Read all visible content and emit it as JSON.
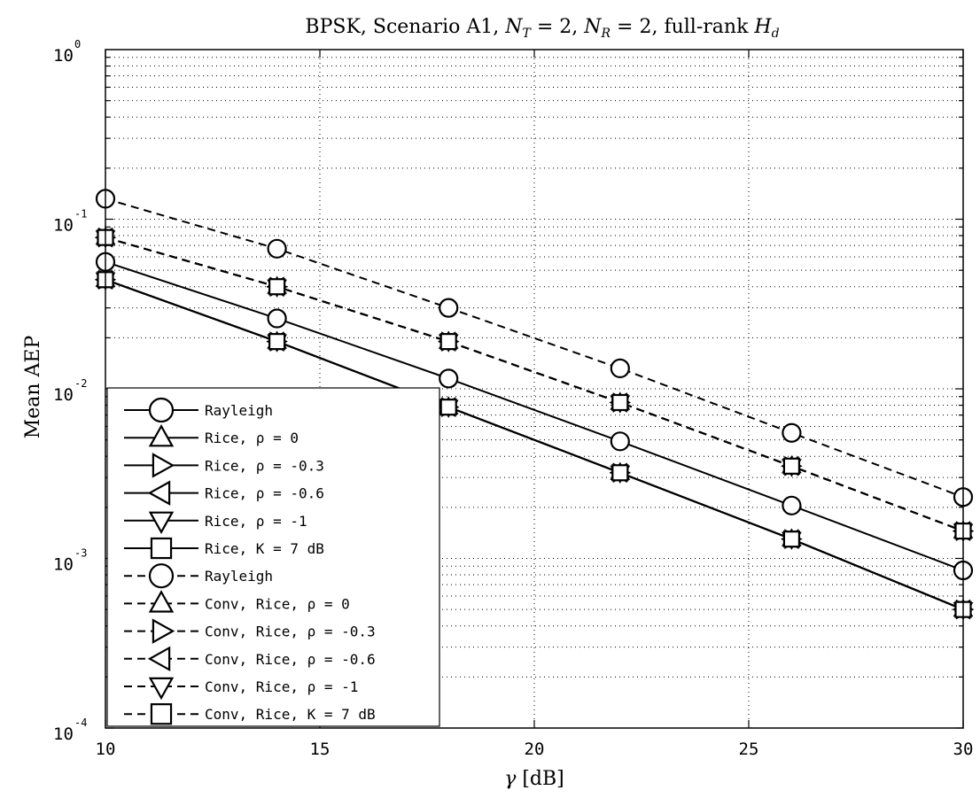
{
  "chart_data": {
    "type": "line",
    "title": "BPSK, Scenario A1, N_T = 2, N_R = 2, full-rank H_d",
    "title_parts": {
      "prefix": "BPSK, Scenario A1, ",
      "nt_sym": "N",
      "nt_sub": "T",
      "nt_val": " = 2, ",
      "nr_sym": "N",
      "nr_sub": "R",
      "nr_val": " = 2, full-rank ",
      "h_sym": "H",
      "h_sub": "d"
    },
    "xlabel": "γ [dB]",
    "xlabel_parts": {
      "sym": "γ",
      "rest": " [dB]"
    },
    "ylabel": "Mean AEP",
    "xlim": [
      10,
      30
    ],
    "ylim": [
      0.0001,
      1
    ],
    "yscale": "log",
    "grid": true,
    "x_ticks": [
      "10",
      "15",
      "20",
      "25",
      "30"
    ],
    "y_ticks": [
      {
        "base": "10",
        "exp": "0"
      },
      {
        "base": "10",
        "exp": "-1"
      },
      {
        "base": "10",
        "exp": "-2"
      },
      {
        "base": "10",
        "exp": "-3"
      },
      {
        "base": "10",
        "exp": "-4"
      }
    ],
    "legend_position": "lower-left",
    "x": [
      10,
      14,
      18,
      22,
      26,
      30
    ],
    "series": [
      {
        "name": "Rayleigh",
        "marker": "circle",
        "dash": "solid",
        "values": [
          0.056,
          0.026,
          0.0115,
          0.0049,
          0.00205,
          0.00085
        ]
      },
      {
        "name": "Rice, ρ = 0",
        "marker": "triangle-up",
        "dash": "solid",
        "values": [
          0.044,
          0.019,
          0.0078,
          0.0032,
          0.0013,
          0.0005
        ]
      },
      {
        "name": "Rice, ρ = -0.3",
        "marker": "triangle-right",
        "dash": "solid",
        "values": [
          0.044,
          0.019,
          0.0078,
          0.0032,
          0.0013,
          0.0005
        ]
      },
      {
        "name": "Rice, ρ = -0.6",
        "marker": "triangle-left",
        "dash": "solid",
        "values": [
          0.044,
          0.019,
          0.0078,
          0.0032,
          0.0013,
          0.0005
        ]
      },
      {
        "name": "Rice, ρ = -1",
        "marker": "triangle-down",
        "dash": "solid",
        "values": [
          0.044,
          0.019,
          0.0078,
          0.0032,
          0.0013,
          0.0005
        ]
      },
      {
        "name": "Rice, K = 7 dB",
        "marker": "square",
        "dash": "solid",
        "values": [
          0.044,
          0.019,
          0.0078,
          0.0032,
          0.0013,
          0.0005
        ]
      },
      {
        "name": "Rayleigh",
        "marker": "circle",
        "dash": "dashed",
        "values": [
          0.132,
          0.067,
          0.03,
          0.0132,
          0.0055,
          0.0023
        ]
      },
      {
        "name": "Conv, Rice, ρ = 0",
        "marker": "triangle-up",
        "dash": "dashed",
        "values": [
          0.078,
          0.04,
          0.019,
          0.0083,
          0.0035,
          0.00145
        ]
      },
      {
        "name": "Conv, Rice, ρ = -0.3",
        "marker": "triangle-right",
        "dash": "dashed",
        "values": [
          0.078,
          0.04,
          0.019,
          0.0083,
          0.0035,
          0.00145
        ]
      },
      {
        "name": "Conv, Rice, ρ = -0.6",
        "marker": "triangle-left",
        "dash": "dashed",
        "values": [
          0.078,
          0.04,
          0.019,
          0.0083,
          0.0035,
          0.00145
        ]
      },
      {
        "name": "Conv, Rice, ρ = -1",
        "marker": "triangle-down",
        "dash": "dashed",
        "values": [
          0.078,
          0.04,
          0.019,
          0.0083,
          0.0035,
          0.00145
        ]
      },
      {
        "name": "Conv, Rice, K = 7 dB",
        "marker": "square",
        "dash": "dashed",
        "values": [
          0.078,
          0.04,
          0.019,
          0.0083,
          0.0035,
          0.00145
        ]
      }
    ]
  }
}
